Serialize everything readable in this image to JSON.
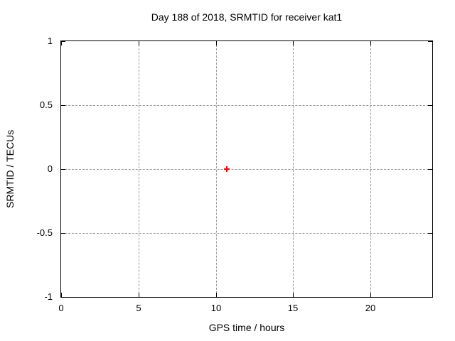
{
  "chart_data": {
    "type": "scatter",
    "title": "Day 188 of 2018, SRMTID for receiver kat1",
    "xlabel": "GPS time / hours",
    "ylabel": "SRMTID / TECUs",
    "xlim": [
      0,
      24
    ],
    "ylim": [
      -1,
      1
    ],
    "xticks": [
      0,
      5,
      10,
      15,
      20
    ],
    "xtick_labels": [
      "0",
      "5",
      "10",
      "15",
      "20"
    ],
    "yticks": [
      -1,
      -0.5,
      0,
      0.5,
      1
    ],
    "ytick_labels": [
      "-1",
      "-0.5",
      "0",
      "0.5",
      "1"
    ],
    "grid": true,
    "legend": false,
    "points": [
      {
        "x": 10.7,
        "y": 0.0
      }
    ],
    "marker": {
      "shape": "plus",
      "color": "#ff0000",
      "size": 8
    },
    "colors": {
      "background": "#ffffff",
      "border": "#000000",
      "grid": "#999999",
      "text": "#000000",
      "marker": "#ff0000"
    }
  }
}
